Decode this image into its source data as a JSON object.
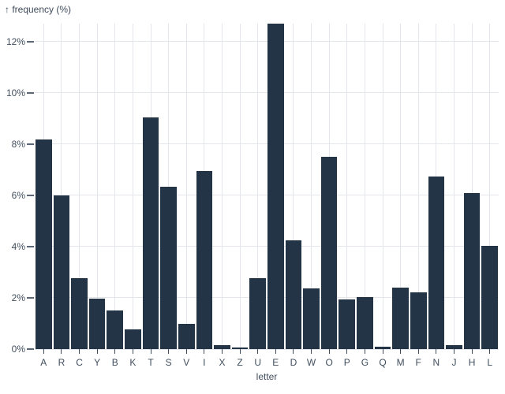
{
  "page": {
    "background": "#ffffff"
  },
  "chart_data": {
    "type": "bar",
    "title": "↑ frequency (%)",
    "xlabel": "letter",
    "ylabel": "frequency (%)",
    "categories": [
      "A",
      "R",
      "C",
      "Y",
      "B",
      "K",
      "T",
      "S",
      "V",
      "I",
      "X",
      "Z",
      "U",
      "E",
      "D",
      "W",
      "O",
      "P",
      "G",
      "Q",
      "M",
      "F",
      "N",
      "J",
      "H",
      "L"
    ],
    "values": [
      8.167,
      5.987,
      2.782,
      1.974,
      1.492,
      0.772,
      9.056,
      6.327,
      0.978,
      6.966,
      0.15,
      0.074,
      2.758,
      12.702,
      4.253,
      2.36,
      7.507,
      1.929,
      2.015,
      0.095,
      2.406,
      2.228,
      6.749,
      0.153,
      6.094,
      4.025
    ],
    "y_ticks": [
      0,
      2,
      4,
      6,
      8,
      10,
      12
    ],
    "y_tick_suffix": "%",
    "ylim": [
      0,
      12.702
    ],
    "grid": true,
    "legend": "none",
    "bar_color": "#243447",
    "grid_color": "#e3e6ea",
    "text_color": "#414e5e"
  }
}
